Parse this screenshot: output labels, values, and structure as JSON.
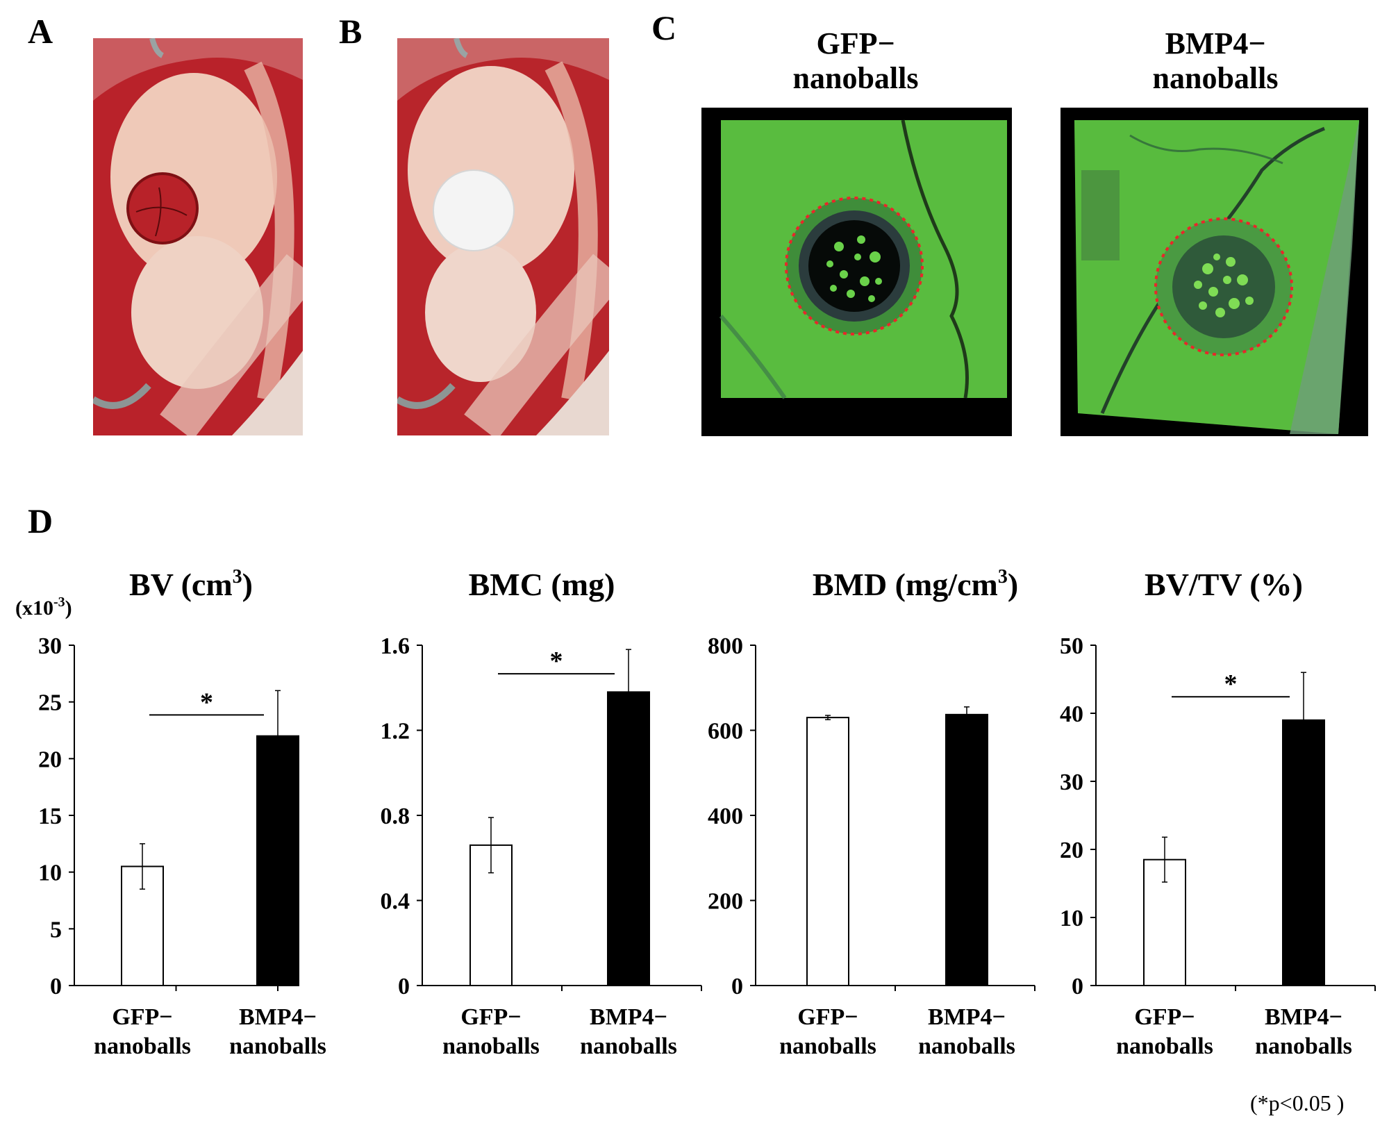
{
  "panel_labels": {
    "a": "A",
    "b": "B",
    "c": "C",
    "d": "D"
  },
  "photos": {
    "a_desc": "surgical-defect-photo",
    "b_desc": "implant-photo",
    "ct_left_title_1": "GFP−",
    "ct_left_title_2": "nanoballs",
    "ct_right_title_1": "BMP4−",
    "ct_right_title_2": "nanoballs"
  },
  "colors": {
    "tissue_red": "#c8262c",
    "bone_green": "#5fbf3a",
    "bar_open": "#ffffff",
    "bar_filled": "#000000",
    "circle_red": "#e8272a"
  },
  "footnote": "(*p<0.05 )",
  "chart_data": [
    {
      "type": "bar",
      "title": "BV (cm",
      "title_sup": "3",
      "title_tail": ")",
      "multiplier_label": "(x10",
      "multiplier_sup": "-3",
      "multiplier_tail": ")",
      "categories": [
        [
          "GFP−",
          "nanoballs"
        ],
        [
          "BMP4−",
          "nanoballs"
        ]
      ],
      "values": [
        10.5,
        22
      ],
      "errors": [
        2,
        4
      ],
      "ylim": [
        0,
        30
      ],
      "ticks": [
        0,
        5,
        10,
        15,
        20,
        25,
        30
      ],
      "tick_labels": [
        "0",
        "5",
        "10",
        "15",
        "20",
        "25",
        "30"
      ],
      "significance": "*"
    },
    {
      "type": "bar",
      "title": "BMC (mg)",
      "categories": [
        [
          "GFP−",
          "nanoballs"
        ],
        [
          "BMP4−",
          "nanoballs"
        ]
      ],
      "values": [
        0.66,
        1.38
      ],
      "errors": [
        0.13,
        0.2
      ],
      "ylim": [
        0,
        1.6
      ],
      "ticks": [
        0,
        0.4,
        0.8,
        1.2,
        1.6
      ],
      "tick_labels": [
        "0",
        "0.4",
        "0.8",
        "1.2",
        "1.6"
      ],
      "significance": "*"
    },
    {
      "type": "bar",
      "title": "BMD (mg/cm",
      "title_sup": "3",
      "title_tail": ")",
      "categories": [
        [
          "GFP−",
          "nanoballs"
        ],
        [
          "BMP4−",
          "nanoballs"
        ]
      ],
      "values": [
        630,
        637
      ],
      "errors": [
        5,
        18
      ],
      "ylim": [
        0,
        800
      ],
      "ticks": [
        0,
        200,
        400,
        600,
        800
      ],
      "tick_labels": [
        "0",
        "200",
        "400",
        "600",
        "800"
      ],
      "significance": ""
    },
    {
      "type": "bar",
      "title": "BV/TV (%)",
      "categories": [
        [
          "GFP−",
          "nanoballs"
        ],
        [
          "BMP4−",
          "nanoballs"
        ]
      ],
      "values": [
        18.5,
        39
      ],
      "errors": [
        3.3,
        7
      ],
      "ylim": [
        0,
        50
      ],
      "ticks": [
        0,
        10,
        20,
        30,
        40,
        50
      ],
      "tick_labels": [
        "0",
        "10",
        "20",
        "30",
        "40",
        "50"
      ],
      "significance": "*"
    }
  ]
}
